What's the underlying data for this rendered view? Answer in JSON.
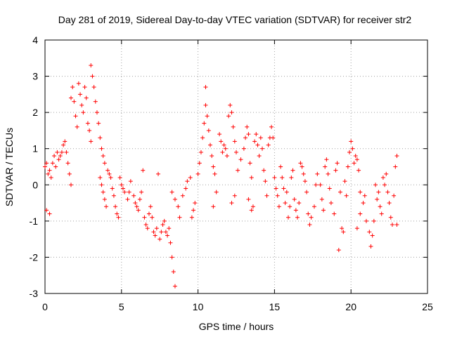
{
  "chart_data": {
    "type": "scatter",
    "title": "Day 281 of 2019, Sidereal Day-to-day VTEC variation (SDTVAR) for receiver str2",
    "xlabel": "GPS time / hours",
    "ylabel": "SDTVAR / TECUs",
    "xlim": [
      0,
      25
    ],
    "ylim": [
      -3,
      4
    ],
    "xticks": [
      "0",
      "5",
      "10",
      "15",
      "20",
      "25"
    ],
    "yticks": [
      "-3",
      "-2",
      "-1",
      "0",
      "1",
      "2",
      "3",
      "4"
    ],
    "grid": true,
    "marker": "+",
    "series": [
      {
        "name": "SDTVAR",
        "color": "#ff0000",
        "points": [
          [
            0.0,
            0.5
          ],
          [
            0.1,
            0.6
          ],
          [
            0.1,
            -0.7
          ],
          [
            0.2,
            0.3
          ],
          [
            0.3,
            0.4
          ],
          [
            0.3,
            -0.8
          ],
          [
            0.4,
            0.2
          ],
          [
            0.5,
            0.6
          ],
          [
            0.6,
            0.8
          ],
          [
            0.7,
            0.5
          ],
          [
            0.8,
            0.9
          ],
          [
            0.9,
            0.7
          ],
          [
            1.0,
            0.8
          ],
          [
            1.1,
            0.9
          ],
          [
            1.2,
            1.1
          ],
          [
            1.3,
            1.2
          ],
          [
            1.4,
            0.9
          ],
          [
            1.5,
            0.6
          ],
          [
            1.6,
            0.3
          ],
          [
            1.7,
            0.0
          ],
          [
            1.7,
            2.4
          ],
          [
            1.8,
            2.7
          ],
          [
            1.9,
            2.3
          ],
          [
            2.0,
            1.9
          ],
          [
            2.1,
            1.6
          ],
          [
            2.2,
            2.8
          ],
          [
            2.3,
            2.5
          ],
          [
            2.4,
            2.2
          ],
          [
            2.5,
            2.0
          ],
          [
            2.6,
            2.7
          ],
          [
            2.7,
            2.4
          ],
          [
            2.8,
            1.7
          ],
          [
            2.9,
            1.5
          ],
          [
            3.0,
            1.2
          ],
          [
            3.0,
            3.3
          ],
          [
            3.1,
            3.0
          ],
          [
            3.2,
            2.7
          ],
          [
            3.3,
            2.3
          ],
          [
            3.4,
            2.0
          ],
          [
            3.5,
            1.7
          ],
          [
            3.6,
            1.3
          ],
          [
            3.7,
            1.0
          ],
          [
            3.8,
            0.8
          ],
          [
            3.9,
            0.6
          ],
          [
            3.6,
            0.2
          ],
          [
            3.7,
            0.0
          ],
          [
            3.8,
            -0.2
          ],
          [
            3.9,
            -0.4
          ],
          [
            4.0,
            -0.6
          ],
          [
            4.1,
            0.4
          ],
          [
            4.2,
            0.3
          ],
          [
            4.3,
            0.2
          ],
          [
            4.4,
            -0.1
          ],
          [
            4.5,
            -0.3
          ],
          [
            4.6,
            -0.6
          ],
          [
            4.7,
            -0.8
          ],
          [
            4.8,
            -0.9
          ],
          [
            4.9,
            0.2
          ],
          [
            5.0,
            0.0
          ],
          [
            5.1,
            -0.1
          ],
          [
            5.2,
            -0.2
          ],
          [
            5.4,
            -0.4
          ],
          [
            5.5,
            -0.2
          ],
          [
            5.6,
            0.1
          ],
          [
            5.8,
            -0.3
          ],
          [
            5.9,
            -0.5
          ],
          [
            6.0,
            -0.6
          ],
          [
            6.1,
            -0.7
          ],
          [
            6.2,
            -0.4
          ],
          [
            6.3,
            -0.2
          ],
          [
            6.4,
            0.4
          ],
          [
            6.5,
            -0.9
          ],
          [
            6.6,
            -1.1
          ],
          [
            6.7,
            -1.2
          ],
          [
            6.8,
            -0.8
          ],
          [
            6.9,
            -0.6
          ],
          [
            7.0,
            -0.9
          ],
          [
            7.1,
            -1.3
          ],
          [
            7.2,
            -1.4
          ],
          [
            7.3,
            -1.2
          ],
          [
            7.4,
            0.3
          ],
          [
            7.5,
            -1.5
          ],
          [
            7.6,
            -1.3
          ],
          [
            7.7,
            -1.1
          ],
          [
            7.8,
            -1.0
          ],
          [
            7.9,
            -1.3
          ],
          [
            8.0,
            -1.4
          ],
          [
            8.1,
            -1.2
          ],
          [
            8.2,
            -1.6
          ],
          [
            8.3,
            -2.0
          ],
          [
            8.4,
            -2.4
          ],
          [
            8.5,
            -2.8
          ],
          [
            8.3,
            -0.2
          ],
          [
            8.5,
            -0.4
          ],
          [
            8.7,
            -0.6
          ],
          [
            8.8,
            -0.9
          ],
          [
            9.0,
            -0.3
          ],
          [
            9.2,
            -0.1
          ],
          [
            9.3,
            0.1
          ],
          [
            9.5,
            0.2
          ],
          [
            9.6,
            -0.9
          ],
          [
            9.7,
            -0.7
          ],
          [
            9.8,
            -0.5
          ],
          [
            10.0,
            0.3
          ],
          [
            10.1,
            0.6
          ],
          [
            10.2,
            0.9
          ],
          [
            10.3,
            1.3
          ],
          [
            10.4,
            1.7
          ],
          [
            10.5,
            2.2
          ],
          [
            10.5,
            2.7
          ],
          [
            10.6,
            1.9
          ],
          [
            10.7,
            1.5
          ],
          [
            10.8,
            1.1
          ],
          [
            10.9,
            0.8
          ],
          [
            11.0,
            0.5
          ],
          [
            11.1,
            0.3
          ],
          [
            11.0,
            -0.6
          ],
          [
            11.2,
            -0.2
          ],
          [
            11.4,
            1.4
          ],
          [
            11.5,
            1.2
          ],
          [
            11.6,
            0.9
          ],
          [
            11.7,
            1.1
          ],
          [
            11.8,
            1.0
          ],
          [
            11.9,
            0.8
          ],
          [
            12.0,
            1.9
          ],
          [
            12.1,
            2.2
          ],
          [
            12.2,
            2.0
          ],
          [
            12.3,
            1.6
          ],
          [
            12.4,
            1.2
          ],
          [
            12.5,
            0.9
          ],
          [
            12.2,
            -0.5
          ],
          [
            12.4,
            -0.3
          ],
          [
            12.6,
            0.4
          ],
          [
            12.8,
            0.7
          ],
          [
            13.0,
            1.0
          ],
          [
            13.1,
            1.3
          ],
          [
            13.2,
            1.6
          ],
          [
            13.3,
            1.4
          ],
          [
            13.4,
            0.6
          ],
          [
            13.5,
            0.2
          ],
          [
            13.3,
            -0.4
          ],
          [
            13.5,
            -0.7
          ],
          [
            13.6,
            -0.6
          ],
          [
            13.7,
            1.2
          ],
          [
            13.8,
            1.4
          ],
          [
            13.9,
            1.1
          ],
          [
            14.0,
            0.8
          ],
          [
            14.1,
            1.3
          ],
          [
            14.2,
            1.0
          ],
          [
            14.3,
            0.4
          ],
          [
            14.4,
            0.1
          ],
          [
            14.5,
            -0.3
          ],
          [
            14.6,
            1.1
          ],
          [
            14.7,
            1.3
          ],
          [
            14.8,
            1.6
          ],
          [
            14.9,
            1.3
          ],
          [
            15.0,
            0.2
          ],
          [
            15.1,
            -0.1
          ],
          [
            15.2,
            -0.3
          ],
          [
            15.3,
            -0.6
          ],
          [
            15.4,
            0.5
          ],
          [
            15.5,
            0.2
          ],
          [
            15.6,
            -0.1
          ],
          [
            15.7,
            -0.5
          ],
          [
            15.8,
            -0.2
          ],
          [
            15.9,
            -0.9
          ],
          [
            16.0,
            -0.6
          ],
          [
            16.1,
            0.2
          ],
          [
            16.2,
            0.4
          ],
          [
            16.3,
            -0.4
          ],
          [
            16.4,
            -0.7
          ],
          [
            16.5,
            -0.9
          ],
          [
            16.6,
            -0.5
          ],
          [
            16.7,
            0.6
          ],
          [
            16.8,
            0.5
          ],
          [
            16.9,
            0.3
          ],
          [
            17.0,
            0.1
          ],
          [
            17.1,
            -0.2
          ],
          [
            17.2,
            -0.8
          ],
          [
            17.3,
            -1.1
          ],
          [
            17.4,
            -0.9
          ],
          [
            17.6,
            -0.6
          ],
          [
            17.7,
            0.0
          ],
          [
            17.8,
            0.3
          ],
          [
            18.0,
            0.0
          ],
          [
            18.1,
            -0.4
          ],
          [
            18.2,
            -0.7
          ],
          [
            18.3,
            0.5
          ],
          [
            18.4,
            0.7
          ],
          [
            18.5,
            0.3
          ],
          [
            18.6,
            -0.1
          ],
          [
            18.7,
            -0.5
          ],
          [
            18.9,
            -0.8
          ],
          [
            19.0,
            0.4
          ],
          [
            19.1,
            0.6
          ],
          [
            19.2,
            -1.8
          ],
          [
            19.3,
            -0.2
          ],
          [
            19.4,
            -1.2
          ],
          [
            19.5,
            -1.3
          ],
          [
            19.6,
            0.1
          ],
          [
            19.7,
            -0.3
          ],
          [
            19.8,
            0.5
          ],
          [
            19.9,
            0.9
          ],
          [
            20.0,
            1.2
          ],
          [
            20.1,
            1.0
          ],
          [
            20.2,
            0.6
          ],
          [
            20.3,
            0.8
          ],
          [
            20.4,
            0.7
          ],
          [
            20.5,
            0.4
          ],
          [
            20.6,
            -0.2
          ],
          [
            20.4,
            -1.2
          ],
          [
            20.6,
            -0.8
          ],
          [
            20.8,
            -0.5
          ],
          [
            20.9,
            -0.3
          ],
          [
            21.0,
            -1.0
          ],
          [
            21.2,
            -1.3
          ],
          [
            21.3,
            -1.7
          ],
          [
            21.4,
            -1.4
          ],
          [
            21.5,
            -1.0
          ],
          [
            21.6,
            0.0
          ],
          [
            21.7,
            -0.4
          ],
          [
            21.8,
            -0.2
          ],
          [
            21.9,
            -0.6
          ],
          [
            22.0,
            -0.8
          ],
          [
            22.1,
            0.2
          ],
          [
            22.2,
            0.0
          ],
          [
            22.3,
            0.3
          ],
          [
            22.4,
            -0.2
          ],
          [
            22.5,
            -0.5
          ],
          [
            22.6,
            -0.9
          ],
          [
            22.7,
            -1.1
          ],
          [
            22.8,
            -0.3
          ],
          [
            22.9,
            0.5
          ],
          [
            23.0,
            0.8
          ],
          [
            23.0,
            -1.1
          ]
        ]
      }
    ]
  }
}
